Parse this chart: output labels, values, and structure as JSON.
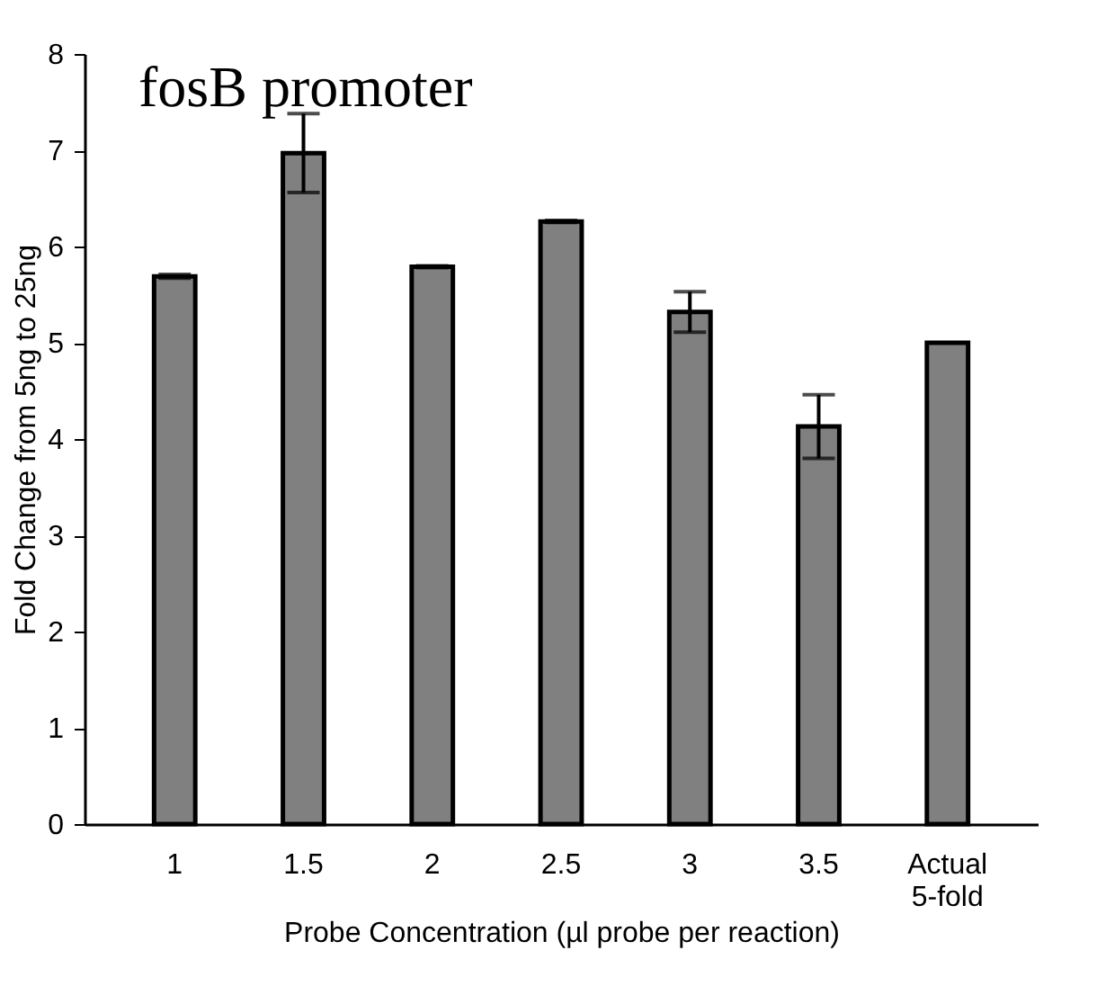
{
  "chart_data": {
    "type": "bar",
    "title": "fosB promoter",
    "xlabel": "Probe Concentration (µl probe per reaction)",
    "ylabel": "Fold Change from 5ng to 25ng",
    "categories": [
      "1",
      "1.5",
      "2",
      "2.5",
      "3",
      "3.5",
      "Actual 5-fold"
    ],
    "values": [
      5.69,
      6.97,
      5.79,
      6.26,
      5.32,
      4.13,
      5.0
    ],
    "errors": [
      0.02,
      0.41,
      0.01,
      0.01,
      0.21,
      0.33,
      null
    ],
    "color": "#808080",
    "ylim": [
      0,
      8
    ],
    "yticks": [
      0,
      1,
      2,
      3,
      4,
      5,
      6,
      7,
      8
    ],
    "grid": false
  }
}
